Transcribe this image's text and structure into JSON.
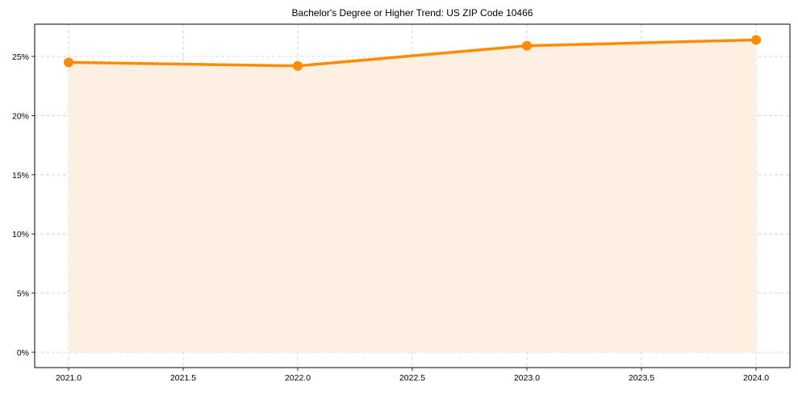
{
  "chart_data": {
    "type": "line",
    "title": "Bachelor's Degree or Higher Trend: US ZIP Code 10466",
    "xlabel": "",
    "ylabel": "",
    "x": [
      2021.0,
      2022.0,
      2023.0,
      2024.0
    ],
    "series": [
      {
        "name": "Bachelor's Degree or Higher",
        "values": [
          24.5,
          24.2,
          25.9,
          26.4
        ],
        "color": "#ff8c00",
        "fill": "#fdf0e2",
        "marker": "circle"
      }
    ],
    "x_ticks": [
      "2021.0",
      "2021.5",
      "2022.0",
      "2022.5",
      "2023.0",
      "2023.5",
      "2024.0"
    ],
    "x_tick_values": [
      2021.0,
      2021.5,
      2022.0,
      2022.5,
      2023.0,
      2023.5,
      2024.0
    ],
    "y_ticks": [
      "0%",
      "5%",
      "10%",
      "15%",
      "20%",
      "25%"
    ],
    "y_tick_values": [
      0,
      5,
      10,
      15,
      20,
      25
    ],
    "xlim": [
      2020.85,
      2024.15
    ],
    "ylim": [
      -1.3,
      27.7
    ],
    "grid": true,
    "legend": null
  }
}
